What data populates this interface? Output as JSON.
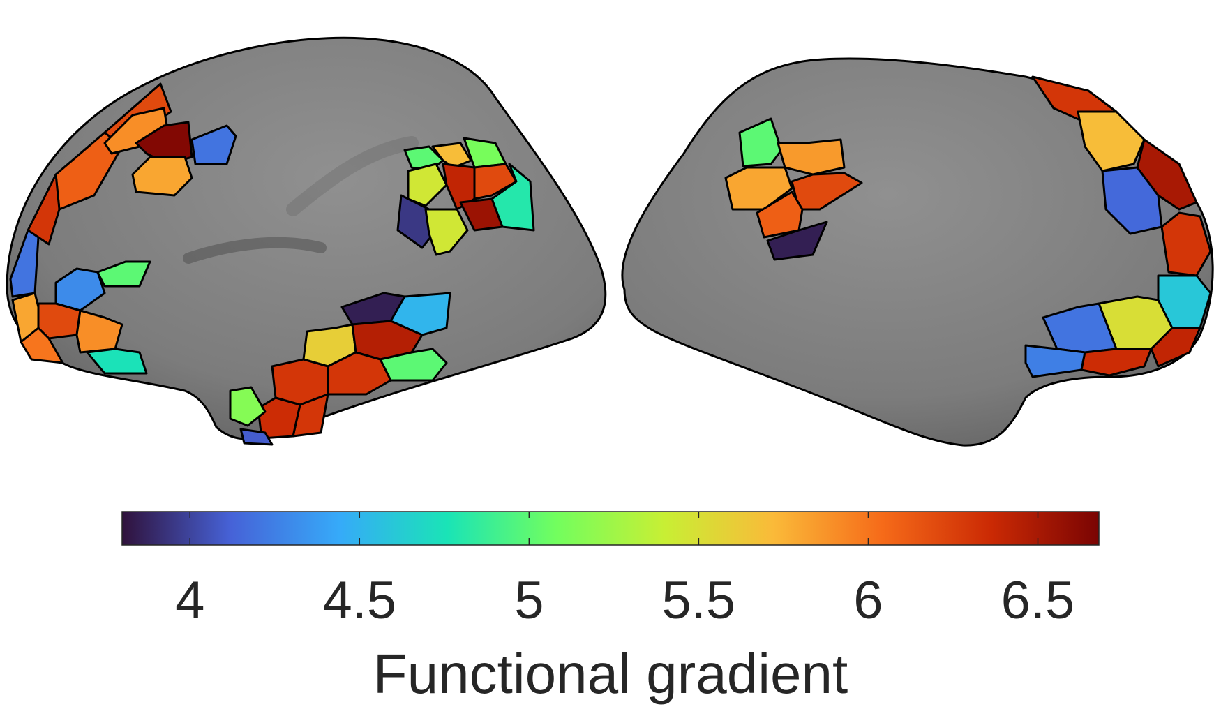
{
  "colorbar": {
    "label": "Functional gradient",
    "min": 3.8,
    "max": 6.68,
    "ticks": [
      {
        "value": 4,
        "label": "4"
      },
      {
        "value": 4.5,
        "label": "4.5"
      },
      {
        "value": 5,
        "label": "5"
      },
      {
        "value": 5.5,
        "label": "5.5"
      },
      {
        "value": 6,
        "label": "6"
      },
      {
        "value": 6.5,
        "label": "6.5"
      }
    ],
    "colormap": [
      "#30123b",
      "#4662d7",
      "#36aaf9",
      "#1ae4b6",
      "#72fe5e",
      "#c8ef34",
      "#faba39",
      "#f66b19",
      "#cb2a04",
      "#7a0403"
    ]
  },
  "surface": {
    "color": "#858585",
    "outline_color": "#000000"
  }
}
